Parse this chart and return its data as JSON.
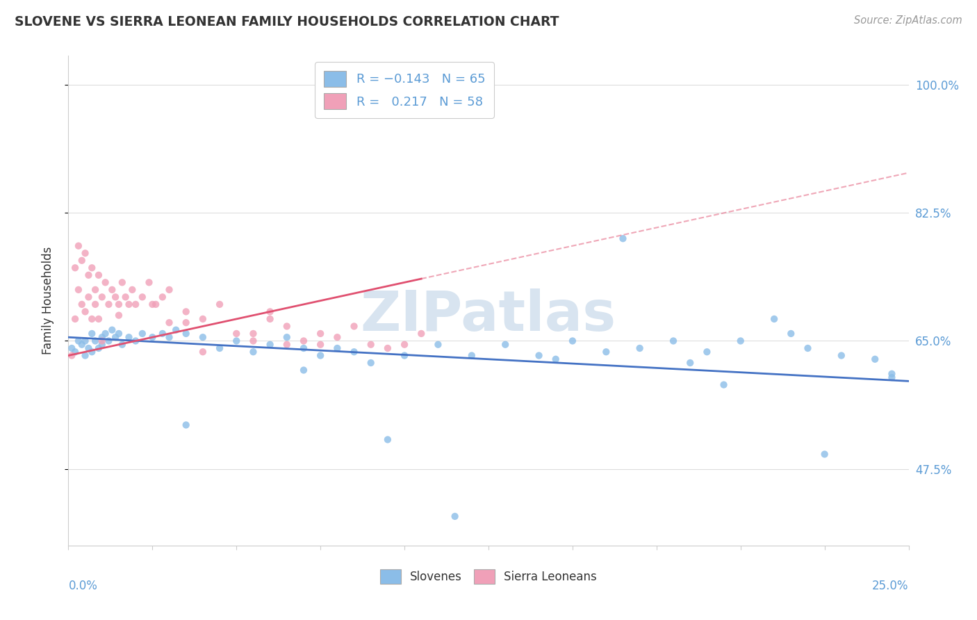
{
  "title": "SLOVENE VS SIERRA LEONEAN FAMILY HOUSEHOLDS CORRELATION CHART",
  "source": "Source: ZipAtlas.com",
  "ylabel": "Family Households",
  "ytick_vals": [
    47.5,
    65.0,
    82.5,
    100.0
  ],
  "ytick_labels": [
    "47.5%",
    "65.0%",
    "82.5%",
    "100.0%"
  ],
  "xmin": 0.0,
  "xmax": 25.0,
  "ymin": 37.0,
  "ymax": 104.0,
  "slovene_color": "#8BBDE8",
  "sierra_color": "#F0A0B8",
  "slovene_trend_color": "#4472C4",
  "sierra_trend_color": "#E05070",
  "R_slovene": -0.143,
  "N_slovene": 65,
  "R_sierra": 0.217,
  "N_sierra": 58,
  "grid_color": "#DDDDDD",
  "watermark_color": "#D8E4F0",
  "slovene_x": [
    0.1,
    0.2,
    0.3,
    0.4,
    0.5,
    0.5,
    0.6,
    0.7,
    0.7,
    0.8,
    0.9,
    1.0,
    1.0,
    1.1,
    1.2,
    1.3,
    1.4,
    1.5,
    1.6,
    1.8,
    2.0,
    2.2,
    2.5,
    2.8,
    3.0,
    3.2,
    3.5,
    4.0,
    4.5,
    5.0,
    5.5,
    6.0,
    6.5,
    7.0,
    7.5,
    8.0,
    8.5,
    9.0,
    10.0,
    11.0,
    12.0,
    13.0,
    14.0,
    14.5,
    15.0,
    16.0,
    17.0,
    18.0,
    18.5,
    19.0,
    20.0,
    21.0,
    21.5,
    22.0,
    23.0,
    24.0,
    24.5,
    3.5,
    7.0,
    9.5,
    11.5,
    16.5,
    19.5,
    22.5,
    24.5
  ],
  "slovene_y": [
    64.0,
    63.5,
    65.0,
    64.5,
    63.0,
    65.0,
    64.0,
    63.5,
    66.0,
    65.0,
    64.0,
    65.5,
    64.5,
    66.0,
    65.0,
    66.5,
    65.5,
    66.0,
    64.5,
    65.5,
    65.0,
    66.0,
    65.5,
    66.0,
    65.5,
    66.5,
    66.0,
    65.5,
    64.0,
    65.0,
    63.5,
    64.5,
    65.5,
    64.0,
    63.0,
    64.0,
    63.5,
    62.0,
    63.0,
    64.5,
    63.0,
    64.5,
    63.0,
    62.5,
    65.0,
    63.5,
    64.0,
    65.0,
    62.0,
    63.5,
    65.0,
    68.0,
    66.0,
    64.0,
    63.0,
    62.5,
    60.0,
    53.5,
    61.0,
    51.5,
    41.0,
    79.0,
    59.0,
    49.5,
    60.5
  ],
  "sierra_x": [
    0.1,
    0.2,
    0.2,
    0.3,
    0.3,
    0.4,
    0.4,
    0.5,
    0.5,
    0.6,
    0.6,
    0.7,
    0.7,
    0.8,
    0.8,
    0.9,
    0.9,
    1.0,
    1.0,
    1.1,
    1.2,
    1.3,
    1.4,
    1.5,
    1.6,
    1.7,
    1.8,
    1.9,
    2.0,
    2.2,
    2.4,
    2.6,
    2.8,
    3.0,
    3.5,
    4.0,
    4.5,
    5.0,
    5.5,
    6.0,
    6.5,
    7.0,
    3.0,
    4.0,
    6.0,
    7.5,
    8.5,
    9.5,
    10.5,
    1.5,
    2.5,
    3.5,
    5.5,
    6.5,
    7.5,
    8.0,
    9.0,
    10.0
  ],
  "sierra_y": [
    63.0,
    68.0,
    75.0,
    72.0,
    78.0,
    70.0,
    76.0,
    69.0,
    77.0,
    71.0,
    74.0,
    68.0,
    75.0,
    70.0,
    72.0,
    68.0,
    74.0,
    65.0,
    71.0,
    73.0,
    70.0,
    72.0,
    71.0,
    70.0,
    73.0,
    71.0,
    70.0,
    72.0,
    70.0,
    71.0,
    73.0,
    70.0,
    71.0,
    72.0,
    69.0,
    68.0,
    70.0,
    66.0,
    65.0,
    68.0,
    64.5,
    65.0,
    67.5,
    63.5,
    69.0,
    64.5,
    67.0,
    64.0,
    66.0,
    68.5,
    70.0,
    67.5,
    66.0,
    67.0,
    66.0,
    65.5,
    64.5,
    64.5
  ],
  "blue_trend_x0": 0.0,
  "blue_trend_y0": 65.5,
  "blue_trend_x1": 25.0,
  "blue_trend_y1": 59.5,
  "pink_trend_x0": 0.0,
  "pink_trend_y0": 63.0,
  "pink_trend_x1": 10.5,
  "pink_trend_y1": 73.5,
  "pink_dash_x0": 10.5,
  "pink_dash_y0": 73.5,
  "pink_dash_x1": 25.0,
  "pink_dash_y1": 88.0
}
